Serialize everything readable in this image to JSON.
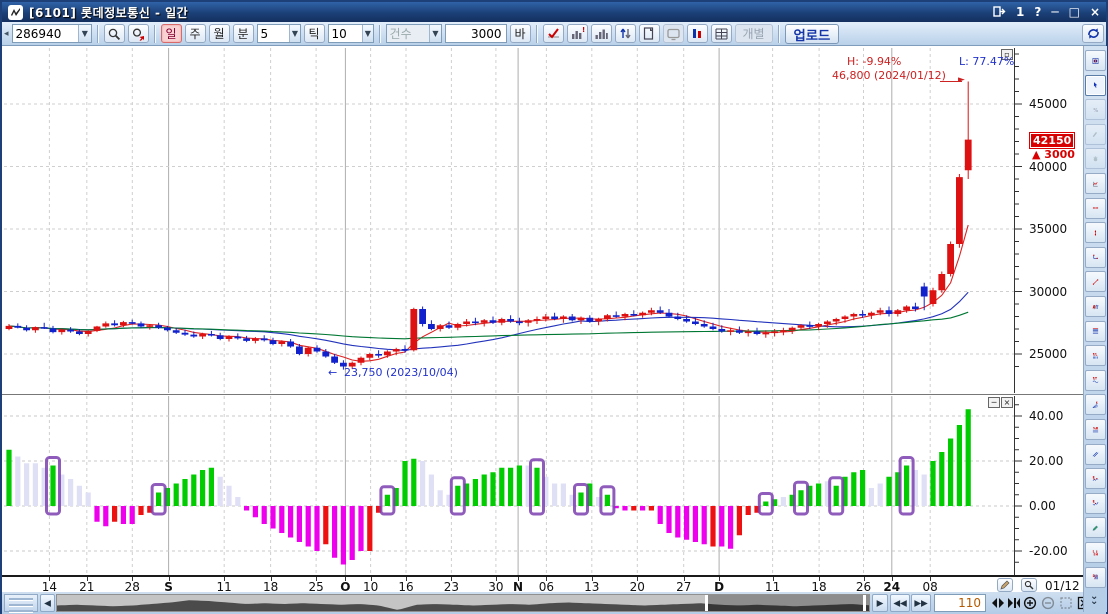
{
  "window": {
    "title": "[6101] 롯데정보통신 - 일간",
    "badge": "1",
    "help": "?"
  },
  "toolbar": {
    "code": "286940",
    "period_day": "일",
    "period_week": "주",
    "period_month": "월",
    "period_min": "분",
    "min_value": "5",
    "tick_label": "틱",
    "tick_value": "10",
    "count_label": "건수",
    "bar_count": "3000",
    "bar_label": "바",
    "individual_label": "개별",
    "upload_label": "업로드"
  },
  "chart": {
    "high_label": "H: -9.94%",
    "low_label": "L: 77.47%",
    "peak_text": "46,800 (2024/01/12)",
    "trough_text": "23,750 (2023/10/04)",
    "marker_value": "42150",
    "marker_change": "▲ 3000",
    "y_tick_labels": [
      "45000",
      "40000",
      "35000",
      "30000",
      "25000"
    ],
    "indicator_tick_labels": [
      "40.00",
      "20.00",
      "0.00",
      "-20.00"
    ]
  },
  "navigator": {
    "bars_visible": "110",
    "date_label": "01/12"
  },
  "chart_data": {
    "type": "candlestick",
    "title": "[6101] 롯데정보통신 일간 차트",
    "timeframe": "일간",
    "price_axis_ticks": [
      45000,
      40000,
      35000,
      30000,
      25000
    ],
    "indicator_axis_ticks": [
      40,
      20,
      0,
      -20
    ],
    "x_ticks": [
      {
        "label": "14",
        "pos": 0.045,
        "bold": false
      },
      {
        "label": "21",
        "pos": 0.082,
        "bold": false
      },
      {
        "label": "28",
        "pos": 0.127,
        "bold": false
      },
      {
        "label": "S",
        "pos": 0.163,
        "bold": true
      },
      {
        "label": "11",
        "pos": 0.218,
        "bold": false
      },
      {
        "label": "18",
        "pos": 0.264,
        "bold": false
      },
      {
        "label": "25",
        "pos": 0.309,
        "bold": false
      },
      {
        "label": "O",
        "pos": 0.338,
        "bold": true
      },
      {
        "label": "10",
        "pos": 0.363,
        "bold": false
      },
      {
        "label": "16",
        "pos": 0.398,
        "bold": false
      },
      {
        "label": "23",
        "pos": 0.443,
        "bold": false
      },
      {
        "label": "30",
        "pos": 0.487,
        "bold": false
      },
      {
        "label": "N",
        "pos": 0.509,
        "bold": true
      },
      {
        "label": "06",
        "pos": 0.537,
        "bold": false
      },
      {
        "label": "13",
        "pos": 0.582,
        "bold": false
      },
      {
        "label": "20",
        "pos": 0.627,
        "bold": false
      },
      {
        "label": "27",
        "pos": 0.673,
        "bold": false
      },
      {
        "label": "D",
        "pos": 0.708,
        "bold": true
      },
      {
        "label": "11",
        "pos": 0.761,
        "bold": false
      },
      {
        "label": "18",
        "pos": 0.807,
        "bold": false
      },
      {
        "label": "26",
        "pos": 0.851,
        "bold": false
      },
      {
        "label": "24",
        "pos": 0.879,
        "bold": true
      },
      {
        "label": "08",
        "pos": 0.917,
        "bold": false
      }
    ],
    "high_annotation": {
      "price": 46800,
      "date": "2024/01/12",
      "text": "H: -9.94%"
    },
    "low_annotation": {
      "price": 23750,
      "date": "2023/10/04",
      "text": "L: 77.47%"
    },
    "last": {
      "price": 42150,
      "change": 3000,
      "direction": "up"
    },
    "candles": [
      [
        27000,
        27400,
        26900,
        27250
      ],
      [
        27250,
        27450,
        27050,
        27100
      ],
      [
        27100,
        27300,
        26800,
        26900
      ],
      [
        26900,
        27200,
        26700,
        27150
      ],
      [
        27150,
        27500,
        27000,
        27050
      ],
      [
        27050,
        27250,
        26650,
        26750
      ],
      [
        26750,
        27050,
        26550,
        26950
      ],
      [
        26950,
        27150,
        26700,
        26800
      ],
      [
        26800,
        27000,
        26500,
        26600
      ],
      [
        26600,
        26900,
        26400,
        26850
      ],
      [
        26850,
        27250,
        26750,
        27200
      ],
      [
        27200,
        27600,
        27100,
        27450
      ],
      [
        27450,
        27700,
        27200,
        27300
      ],
      [
        27300,
        27650,
        27150,
        27550
      ],
      [
        27550,
        27750,
        27350,
        27450
      ],
      [
        27450,
        27600,
        27100,
        27200
      ],
      [
        27200,
        27400,
        26950,
        27300
      ],
      [
        27300,
        27500,
        27000,
        27100
      ],
      [
        27100,
        27250,
        26800,
        26900
      ],
      [
        26900,
        27100,
        26600,
        26700
      ],
      [
        26700,
        26950,
        26450,
        26550
      ],
      [
        26550,
        26800,
        26300,
        26400
      ],
      [
        26400,
        26700,
        26200,
        26600
      ],
      [
        26600,
        26850,
        26400,
        26500
      ],
      [
        26500,
        26700,
        26100,
        26200
      ],
      [
        26200,
        26500,
        26000,
        26400
      ],
      [
        26400,
        26650,
        26150,
        26250
      ],
      [
        26250,
        26450,
        25950,
        26050
      ],
      [
        26050,
        26350,
        25850,
        26250
      ],
      [
        26250,
        26500,
        26000,
        26100
      ],
      [
        26100,
        26300,
        25700,
        25800
      ],
      [
        25800,
        26100,
        25600,
        26000
      ],
      [
        26000,
        26200,
        25500,
        25600
      ],
      [
        25600,
        25800,
        24900,
        25000
      ],
      [
        25000,
        25600,
        24800,
        25500
      ],
      [
        25500,
        25700,
        25100,
        25200
      ],
      [
        25200,
        25400,
        24700,
        24800
      ],
      [
        24800,
        25000,
        24200,
        24300
      ],
      [
        24300,
        24500,
        23750,
        24000
      ],
      [
        24000,
        24400,
        23800,
        24300
      ],
      [
        24300,
        24800,
        24100,
        24700
      ],
      [
        24700,
        25100,
        24500,
        25000
      ],
      [
        25000,
        25300,
        24700,
        24900
      ],
      [
        24900,
        25300,
        24700,
        25200
      ],
      [
        25200,
        25500,
        24900,
        25400
      ],
      [
        25400,
        25700,
        25100,
        25300
      ],
      [
        25300,
        28700,
        25200,
        28600
      ],
      [
        28600,
        28800,
        27200,
        27400
      ],
      [
        27400,
        27700,
        26900,
        27000
      ],
      [
        27000,
        27400,
        26800,
        27300
      ],
      [
        27300,
        27600,
        27000,
        27100
      ],
      [
        27100,
        27500,
        26900,
        27400
      ],
      [
        27400,
        27800,
        27200,
        27600
      ],
      [
        27600,
        27900,
        27300,
        27500
      ],
      [
        27500,
        27800,
        27200,
        27700
      ],
      [
        27700,
        28000,
        27400,
        27500
      ],
      [
        27500,
        27900,
        27300,
        27800
      ],
      [
        27800,
        28100,
        27500,
        27600
      ],
      [
        27600,
        27900,
        27300,
        27500
      ],
      [
        27500,
        27800,
        27200,
        27700
      ],
      [
        27700,
        28000,
        27400,
        27800
      ],
      [
        27800,
        28200,
        27600,
        28000
      ],
      [
        28000,
        28300,
        27700,
        27800
      ],
      [
        27800,
        28100,
        27500,
        28000
      ],
      [
        28000,
        28200,
        27600,
        27700
      ],
      [
        27700,
        28000,
        27400,
        27900
      ],
      [
        27900,
        28100,
        27500,
        27600
      ],
      [
        27600,
        27900,
        27300,
        27800
      ],
      [
        27800,
        28200,
        27600,
        28100
      ],
      [
        28100,
        28400,
        27900,
        28000
      ],
      [
        28000,
        28300,
        27700,
        28200
      ],
      [
        28200,
        28500,
        28000,
        28100
      ],
      [
        28100,
        28400,
        27900,
        28300
      ],
      [
        28300,
        28700,
        28100,
        28500
      ],
      [
        28500,
        28800,
        28200,
        28300
      ],
      [
        28300,
        28600,
        27900,
        28000
      ],
      [
        28000,
        28300,
        27700,
        27800
      ],
      [
        27800,
        28100,
        27500,
        27600
      ],
      [
        27600,
        27900,
        27300,
        27400
      ],
      [
        27400,
        27700,
        27100,
        27200
      ],
      [
        27200,
        27500,
        26900,
        27000
      ],
      [
        27000,
        27300,
        26700,
        26800
      ],
      [
        26800,
        27100,
        26500,
        26900
      ],
      [
        26900,
        27200,
        26600,
        26700
      ],
      [
        26700,
        27000,
        26400,
        26800
      ],
      [
        26800,
        27100,
        26500,
        26600
      ],
      [
        26600,
        26900,
        26300,
        26700
      ],
      [
        26700,
        27000,
        26400,
        26800
      ],
      [
        26800,
        27100,
        26500,
        26900
      ],
      [
        26900,
        27200,
        26600,
        27100
      ],
      [
        27100,
        27400,
        26900,
        27300
      ],
      [
        27300,
        27600,
        27000,
        27200
      ],
      [
        27200,
        27500,
        26900,
        27400
      ],
      [
        27400,
        27700,
        27100,
        27600
      ],
      [
        27600,
        27900,
        27300,
        27800
      ],
      [
        27800,
        28100,
        27500,
        28000
      ],
      [
        28000,
        28300,
        27700,
        28200
      ],
      [
        28200,
        28500,
        27900,
        28100
      ],
      [
        28100,
        28400,
        27800,
        28300
      ],
      [
        28300,
        28700,
        28100,
        28500
      ],
      [
        28500,
        28800,
        28000,
        28200
      ],
      [
        28200,
        28600,
        28000,
        28500
      ],
      [
        28500,
        28900,
        28300,
        28800
      ],
      [
        28800,
        29100,
        28400,
        28600
      ],
      [
        30400,
        30700,
        28500,
        29600
      ],
      [
        29000,
        30300,
        28800,
        30100
      ],
      [
        30100,
        31600,
        29900,
        31400
      ],
      [
        31400,
        34000,
        31200,
        33800
      ],
      [
        33800,
        39400,
        33500,
        39150
      ],
      [
        39700,
        46800,
        39000,
        42150
      ]
    ],
    "histogram": {
      "values": [
        25,
        22,
        19,
        19,
        17,
        18,
        14,
        12,
        9,
        6,
        -7,
        -9,
        -7,
        -8,
        -8,
        -4,
        -3,
        6,
        8,
        10,
        12,
        14,
        16,
        17,
        13,
        9,
        4,
        -2,
        -5,
        -8,
        -10,
        -12,
        -14,
        -16,
        -18,
        -20,
        -17,
        -23,
        -26,
        -24,
        -20,
        -20,
        -3,
        5,
        8,
        20,
        21,
        20,
        14,
        7,
        5,
        9,
        10,
        12,
        14,
        15,
        17,
        17,
        18,
        18,
        17,
        13,
        10,
        10,
        5,
        6,
        10,
        4,
        5,
        -1,
        -2,
        -2,
        -2,
        -2,
        -8,
        -12,
        -14,
        -15,
        -16,
        -17,
        -18,
        -18,
        -19,
        -13,
        -4,
        -3,
        2,
        3,
        4,
        5,
        7,
        9,
        10,
        11,
        9,
        13,
        15,
        16,
        8,
        10,
        13,
        15,
        18,
        16,
        14,
        20,
        24,
        30,
        36,
        43
      ],
      "colors": [
        "g",
        "l",
        "l",
        "l",
        "l",
        "g",
        "l",
        "l",
        "l",
        "l",
        "m",
        "m",
        "r",
        "m",
        "m",
        "r",
        "r",
        "g",
        "g",
        "g",
        "g",
        "g",
        "g",
        "g",
        "l",
        "l",
        "l",
        "m",
        "m",
        "m",
        "m",
        "m",
        "m",
        "m",
        "m",
        "m",
        "r",
        "m",
        "m",
        "m",
        "m",
        "r",
        "r",
        "g",
        "g",
        "g",
        "g",
        "l",
        "l",
        "l",
        "l",
        "g",
        "g",
        "g",
        "g",
        "g",
        "g",
        "g",
        "g",
        "l",
        "g",
        "l",
        "l",
        "l",
        "l",
        "g",
        "g",
        "l",
        "g",
        "m",
        "m",
        "r",
        "m",
        "r",
        "m",
        "m",
        "m",
        "m",
        "m",
        "m",
        "r",
        "m",
        "m",
        "r",
        "r",
        "r",
        "g",
        "g",
        "l",
        "g",
        "g",
        "g",
        "g",
        "l",
        "g",
        "g",
        "g",
        "g",
        "l",
        "l",
        "g",
        "g",
        "g",
        "l",
        "l",
        "g",
        "g",
        "g",
        "g",
        "g"
      ],
      "highlight_boxes": [
        5,
        17,
        43,
        51,
        60,
        65,
        68,
        86,
        90,
        94,
        102
      ]
    },
    "moving_averages": [
      {
        "name": "short",
        "window": 5,
        "color": "#dd2222"
      },
      {
        "name": "mid",
        "window": 20,
        "color": "#2233bb"
      },
      {
        "name": "long",
        "window": 60,
        "color": "#007733"
      }
    ],
    "navigator_wave": [
      0.5,
      0.55,
      0.5,
      0.45,
      0.5,
      0.6,
      0.7,
      0.85,
      0.8,
      0.7,
      0.6,
      0.65,
      0.6,
      0.65,
      0.6,
      0.55,
      0.6,
      0.5,
      0.2,
      0.55,
      0.6,
      0.55,
      0.5,
      0.55,
      0.6,
      0.55,
      0.65,
      0.7,
      0.65,
      0.6,
      0.55,
      0.5,
      0.55,
      0.6,
      0.65,
      0.55,
      0.5,
      0.55,
      0.5,
      0.45,
      0.5,
      0.55,
      0.6,
      0.5
    ]
  },
  "colors": {
    "up": "#dd1111",
    "down": "#1122cc",
    "hist_up": "#00cc00",
    "hist_fade": "#dfe0f6",
    "hist_dn": "#ee00ee",
    "hist_rec": "#ee1111",
    "box": "#7b3fb0",
    "annotation_red": "#cc2222",
    "annotation_blue": "#2233cc"
  },
  "sidebar": {
    "icons": [
      {
        "name": "chart-settings-icon",
        "state": "normal"
      },
      {
        "name": "cursor-arrow-icon",
        "state": "active"
      },
      {
        "name": "percent-tool-icon",
        "state": "disabled"
      },
      {
        "name": "hand-edit-icon",
        "state": "disabled"
      },
      {
        "name": "hand-move-icon",
        "state": "disabled"
      },
      {
        "name": "mini-chart-icon",
        "state": "normal"
      },
      {
        "name": "horizontal-line-icon",
        "state": "normal"
      },
      {
        "name": "vertical-line-icon",
        "state": "normal"
      },
      {
        "name": "polyline-tool-icon",
        "state": "normal"
      },
      {
        "name": "trend-line-icon",
        "state": "normal"
      },
      {
        "name": "text-note-icon",
        "state": "normal"
      },
      {
        "name": "fib-retracement-icon",
        "state": "normal"
      },
      {
        "name": "fib-bars-icon",
        "state": "normal"
      },
      {
        "name": "fib-wave-icon",
        "state": "normal"
      },
      {
        "name": "fib-fan-icon",
        "state": "normal"
      },
      {
        "name": "percent-range-icon",
        "state": "normal"
      },
      {
        "name": "parallel-channel-icon",
        "state": "normal"
      },
      {
        "name": "elliott-wave-icon",
        "state": "normal"
      },
      {
        "name": "elliott-impulse-icon",
        "state": "normal"
      },
      {
        "name": "pencil-draw-icon",
        "state": "normal"
      },
      {
        "name": "low-high-candle-icon",
        "state": "normal"
      },
      {
        "name": "pattern-candle-icon",
        "state": "normal"
      }
    ]
  },
  "toolbar_icons": [
    {
      "name": "signal-check-icon",
      "state": "normal"
    },
    {
      "name": "volume-alert-icon",
      "state": "normal"
    },
    {
      "name": "volume-bars-icon",
      "state": "normal"
    },
    {
      "name": "sort-updown-icon",
      "state": "normal"
    },
    {
      "name": "copy-chart-icon",
      "state": "normal"
    },
    {
      "name": "tv-view-icon",
      "state": "disabled"
    },
    {
      "name": "compare-chart-icon",
      "state": "normal"
    },
    {
      "name": "data-grid-icon",
      "state": "normal"
    }
  ]
}
